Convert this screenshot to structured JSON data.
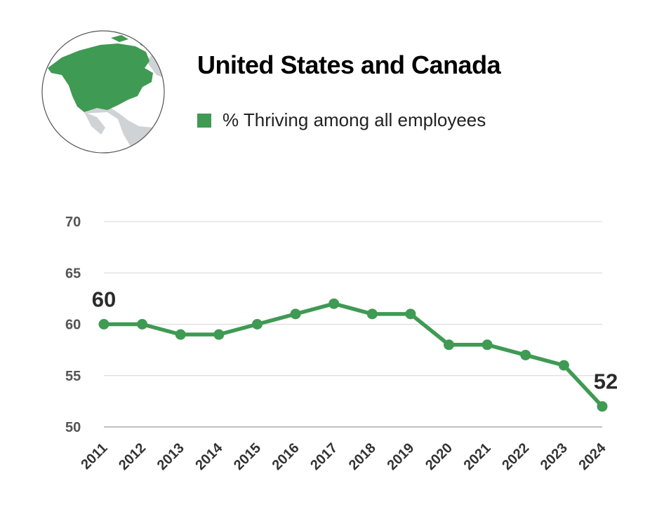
{
  "header": {
    "title": "United States and Canada",
    "map_icon": "north-america-globe-icon"
  },
  "colors": {
    "series": "#3f9a53",
    "grid": "#d6d6d6",
    "land_highlight": "#3f9a53",
    "land_other": "#cfd3d6"
  },
  "chart_data": {
    "type": "line",
    "title": "United States and Canada",
    "xlabel": "",
    "ylabel": "",
    "x": [
      "2011",
      "2012",
      "2013",
      "2014",
      "2015",
      "2016",
      "2017",
      "2018",
      "2019",
      "2020",
      "2021",
      "2022",
      "2023",
      "2024"
    ],
    "series": [
      {
        "name": "% Thriving among all employees",
        "values": [
          60,
          60,
          59,
          59,
          60,
          61,
          62,
          61,
          61,
          58,
          58,
          57,
          56,
          52
        ]
      }
    ],
    "ylim": [
      50,
      70
    ],
    "yticks": [
      50,
      55,
      60,
      65,
      70
    ],
    "grid": true,
    "legend": "top",
    "data_labels": [
      {
        "x": "2011",
        "value": "60"
      },
      {
        "x": "2024",
        "value": "52"
      }
    ]
  }
}
